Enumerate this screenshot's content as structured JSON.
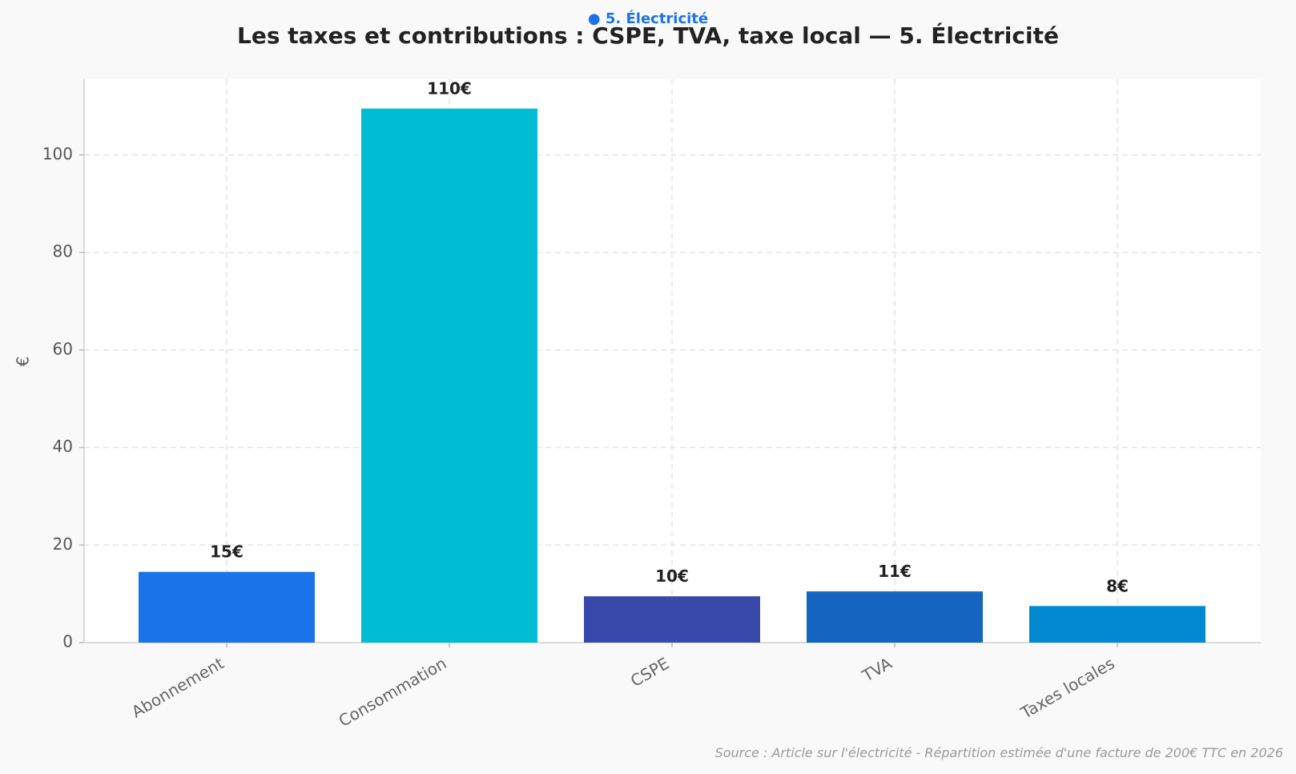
{
  "chart_data": {
    "type": "bar",
    "kicker": "● 5. Électricité",
    "title": "Les taxes et contributions : CSPE, TVA, taxe local — 5. Électricité",
    "source": "Source : Article sur l'électricité - Répartition estimée d'une facture de 200€ TTC en 2026",
    "xlabel": "",
    "ylabel": "€",
    "categories": [
      "Abonnement",
      "Consommation",
      "CSPE",
      "TVA",
      "Taxes locales"
    ],
    "values": [
      14.5,
      109.5,
      9.5,
      10.5,
      7.5
    ],
    "data_labels": [
      "15€",
      "110€",
      "10€",
      "11€",
      "8€"
    ],
    "bar_colors": [
      "#1a73e8",
      "#00bcd4",
      "#3949ab",
      "#1565c0",
      "#0288d1"
    ],
    "yticks": [
      0,
      20,
      40,
      60,
      80,
      100
    ],
    "ylim": [
      0,
      115.5
    ],
    "grid": true
  }
}
